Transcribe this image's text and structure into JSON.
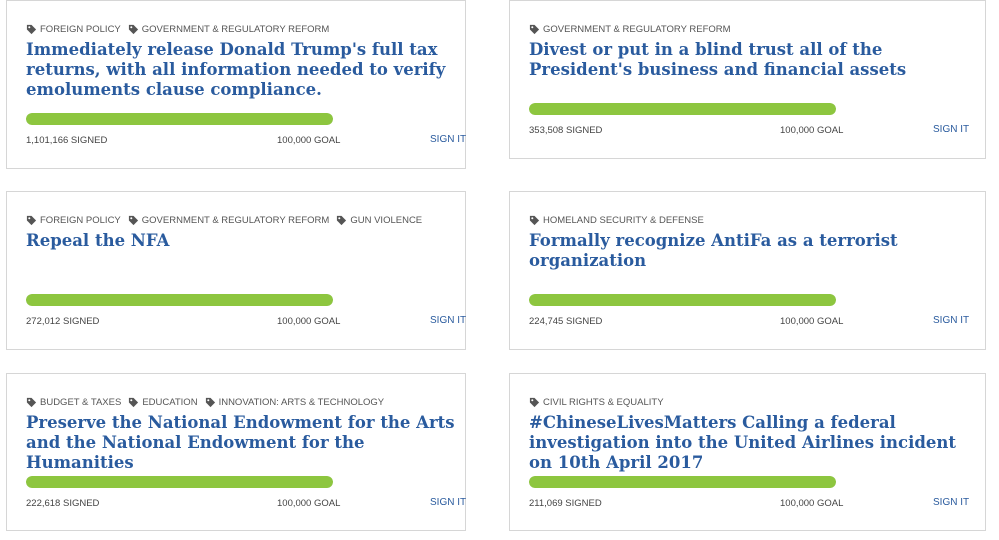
{
  "petitions": [
    {
      "tags": [
        "FOREIGN POLICY",
        "GOVERNMENT & REGULATORY REFORM"
      ],
      "title": "Immediately release Donald Trump's full tax returns, with all information needed to verify emoluments clause compliance.",
      "signed": "1,101,166 SIGNED",
      "goal": "100,000 GOAL",
      "progress": 1.0,
      "cta": "SIGN IT"
    },
    {
      "tags": [
        "GOVERNMENT & REGULATORY REFORM"
      ],
      "title": "Divest or put in a blind trust all of the President's business and financial assets",
      "signed": "353,508 SIGNED",
      "goal": "100,000 GOAL",
      "progress": 1.0,
      "cta": "SIGN IT"
    },
    {
      "tags": [
        "FOREIGN POLICY",
        "GOVERNMENT & REGULATORY REFORM",
        "GUN VIOLENCE"
      ],
      "title": "Repeal the NFA",
      "signed": "272,012 SIGNED",
      "goal": "100,000 GOAL",
      "progress": 1.0,
      "cta": "SIGN IT"
    },
    {
      "tags": [
        "HOMELAND SECURITY & DEFENSE"
      ],
      "title": "Formally recognize AntiFa as a terrorist organization",
      "signed": "224,745 SIGNED",
      "goal": "100,000 GOAL",
      "progress": 1.0,
      "cta": "SIGN IT"
    },
    {
      "tags": [
        "BUDGET & TAXES",
        "EDUCATION",
        "INNOVATION: ARTS & TECHNOLOGY"
      ],
      "title": "Preserve the National Endowment for the Arts and the National Endowment for the Humanities",
      "signed": "222,618 SIGNED",
      "goal": "100,000 GOAL",
      "progress": 1.0,
      "cta": "SIGN IT"
    },
    {
      "tags": [
        "CIVIL RIGHTS & EQUALITY"
      ],
      "title": "#ChineseLivesMatters Calling a federal investigation into the United Airlines incident on 10th April 2017",
      "signed": "211,069 SIGNED",
      "goal": "100,000 GOAL",
      "progress": 1.0,
      "cta": "SIGN IT"
    }
  ],
  "colors": {
    "title": "#2a5b9e",
    "progress_fill": "#8dc63f",
    "tag_icon": "#555555"
  },
  "tag_icon_name": "tag-icon"
}
